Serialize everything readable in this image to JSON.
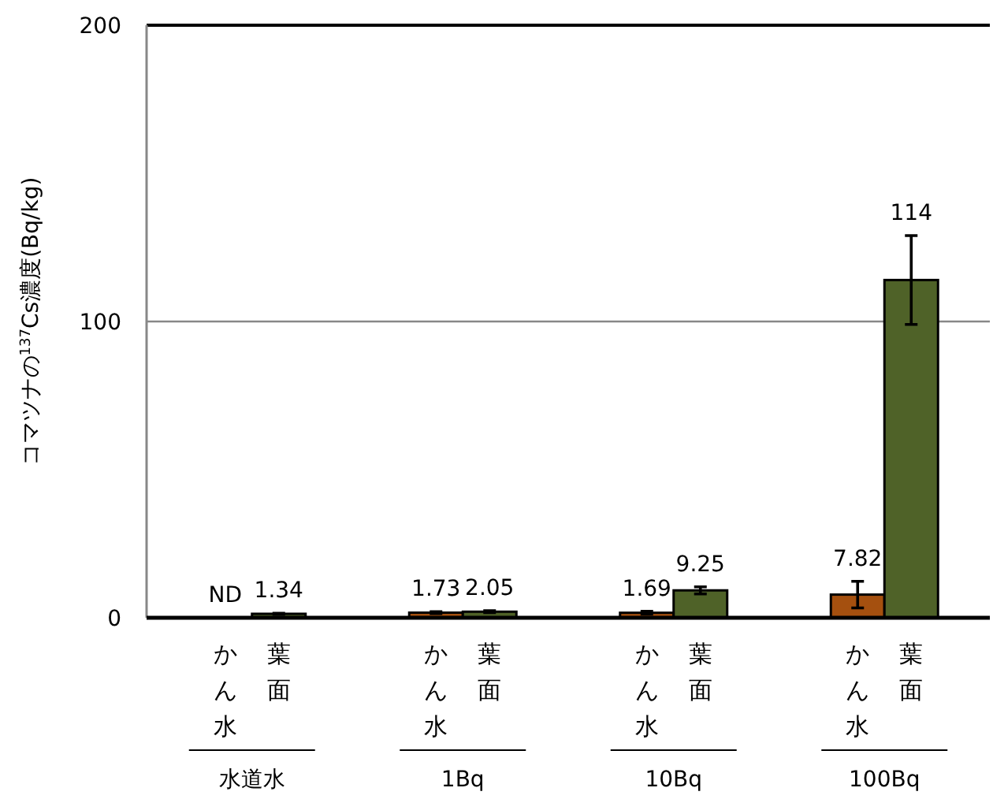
{
  "chart_data": {
    "type": "bar",
    "ylabel": "コマツナの$^{137}$Cs濃度(Bq/kg)",
    "categories": [
      "水道水",
      "1Bq",
      "10Bq",
      "100Bq"
    ],
    "series": [
      {
        "name": "かん水",
        "color": "#a5500f",
        "values": [
          null,
          1.73,
          1.69,
          7.82
        ],
        "errors": [
          null,
          0.3,
          0.5,
          4.5
        ],
        "value_labels": [
          "ND",
          "1.73",
          "1.69",
          "7.82"
        ]
      },
      {
        "name": "葉面",
        "color": "#4f6228",
        "values": [
          1.34,
          2.05,
          9.25,
          114
        ],
        "errors": [
          0.2,
          0.3,
          1.2,
          15
        ],
        "value_labels": [
          "1.34",
          "2.05",
          "9.25",
          "114"
        ]
      }
    ],
    "ylim": [
      0,
      200
    ],
    "yticks": [
      0,
      100,
      200
    ],
    "grid": "y"
  }
}
